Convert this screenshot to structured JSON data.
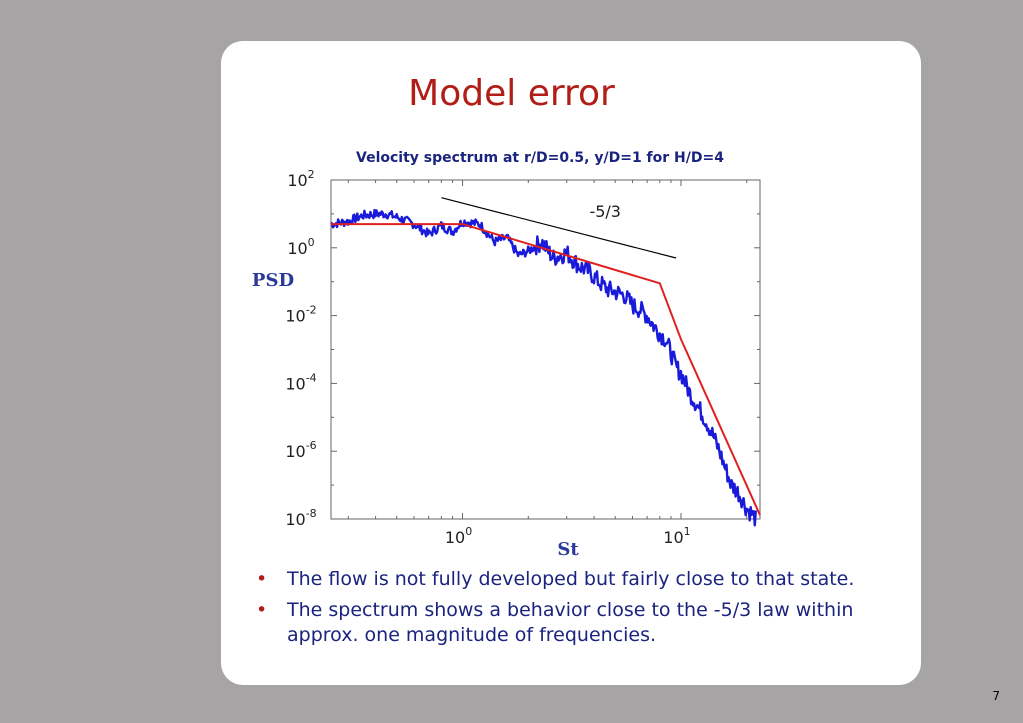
{
  "slide": {
    "title": "Model error",
    "page_number": "7",
    "bullets": [
      "The flow is not fully developed but fairly close to that state.",
      "The spectrum shows a behavior close to the -5/3 law within approx. one magnitude of frequencies."
    ],
    "colors": {
      "title": "#b01e17",
      "text": "#1a237e",
      "background": "#a7a4a5",
      "card": "#ffffff"
    }
  },
  "chart_data": {
    "type": "line",
    "title": "Velocity spectrum at r/D=0.5, y/D=1 for H/D=4",
    "xlabel": "St",
    "ylabel": "PSD",
    "xscale": "log",
    "yscale": "log",
    "xlim": [
      0.25,
      23
    ],
    "ylim": [
      1e-08,
      100
    ],
    "x_ticks": [
      {
        "value": 1,
        "base": "10",
        "exp": "0"
      },
      {
        "value": 10,
        "base": "10",
        "exp": "1"
      }
    ],
    "y_ticks": [
      {
        "value": 100,
        "base": "10",
        "exp": "2"
      },
      {
        "value": 1,
        "base": "10",
        "exp": "0"
      },
      {
        "value": 0.01,
        "base": "10",
        "exp": "-2"
      },
      {
        "value": 0.0001,
        "base": "10",
        "exp": "-4"
      },
      {
        "value": 1e-06,
        "base": "10",
        "exp": "-6"
      },
      {
        "value": 1e-08,
        "base": "10",
        "exp": "-8"
      }
    ],
    "grid": false,
    "series": [
      {
        "color": "#1a1adb",
        "style": "noisy",
        "x": [
          0.25,
          0.3,
          0.35,
          0.4,
          0.45,
          0.5,
          0.6,
          0.7,
          0.8,
          0.9,
          1.0,
          1.2,
          1.4,
          1.6,
          1.8,
          2.0,
          2.3,
          2.6,
          3.0,
          3.4,
          3.8,
          4.2,
          4.6,
          5.0,
          5.5,
          6.0,
          6.5,
          7.0,
          7.5,
          8.0,
          8.5,
          9.0,
          9.5,
          10,
          11,
          12,
          13,
          14,
          15,
          16,
          17,
          18,
          19,
          20,
          21,
          22
        ],
        "values": [
          5,
          6,
          9,
          10,
          10,
          8,
          5,
          2.5,
          4.5,
          3,
          6,
          5,
          1.5,
          2,
          0.6,
          0.8,
          1.5,
          0.5,
          0.7,
          0.3,
          0.2,
          0.1,
          0.06,
          0.05,
          0.04,
          0.02,
          0.015,
          0.01,
          0.005,
          0.003,
          0.002,
          0.0008,
          0.0003,
          0.0002,
          5e-05,
          2e-05,
          8e-06,
          3e-06,
          1e-06,
          3e-07,
          1e-07,
          7e-08,
          4e-08,
          2e-08,
          1.5e-08,
          1e-08
        ]
      },
      {
        "color": "#e02020",
        "style": "plain",
        "x": [
          0.25,
          1.0,
          8.0,
          10.0,
          23.0
        ],
        "values": [
          5,
          5,
          0.09,
          0.002,
          1.3e-08
        ]
      },
      {
        "color": "#000000",
        "style": "plain",
        "x": [
          0.8,
          9.5
        ],
        "values": [
          30,
          0.5
        ]
      }
    ],
    "annotations": [
      {
        "text": "-5/3",
        "x": 4.5,
        "y": 8
      }
    ]
  }
}
